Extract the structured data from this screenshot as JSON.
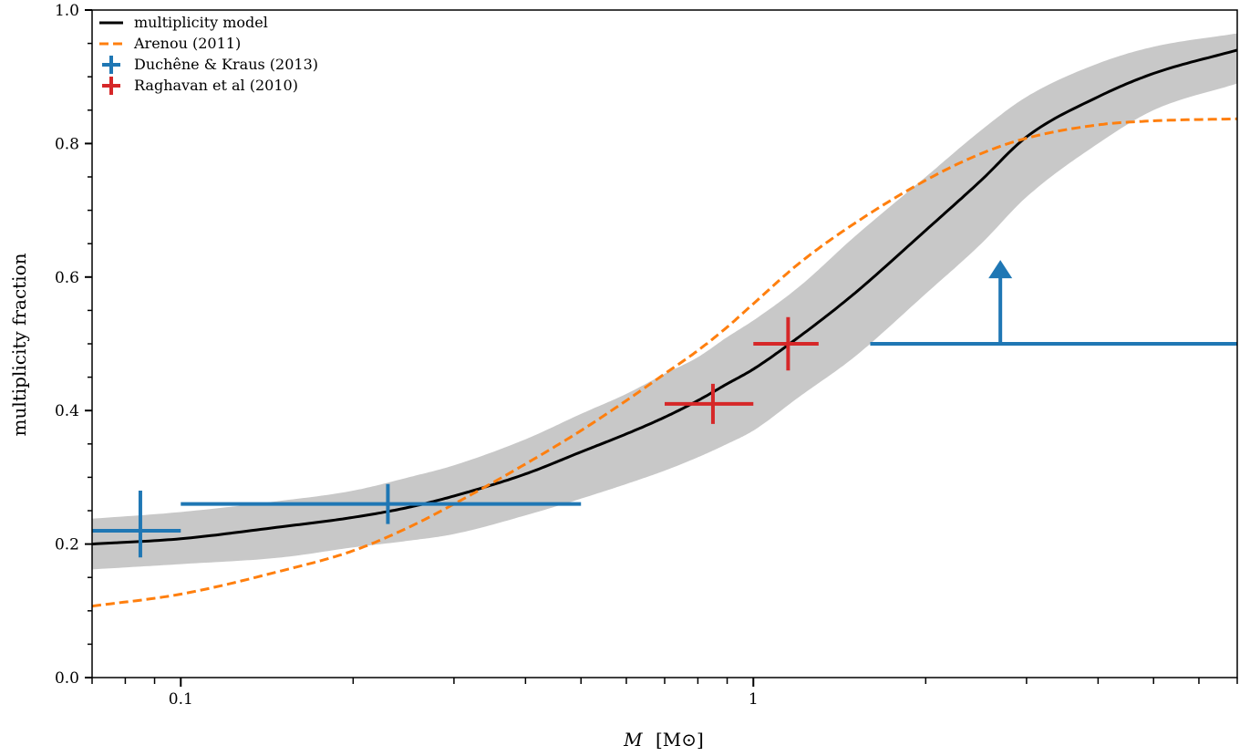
{
  "chart_data": {
    "type": "line",
    "xscale": "log",
    "xlim": [
      0.07,
      7.0
    ],
    "ylim": [
      0.0,
      1.0
    ],
    "xlabel_var": "M",
    "xlabel_unit": "[M⊙]",
    "ylabel": "multiplicity fraction",
    "xticks_major": [
      0.1,
      1
    ],
    "xtick_labels": [
      "0.1",
      "1"
    ],
    "yticks": [
      0.0,
      0.2,
      0.4,
      0.6,
      0.8,
      1.0
    ],
    "ytick_labels": [
      "0.0",
      "0.2",
      "0.4",
      "0.6",
      "0.8",
      "1.0"
    ],
    "grid": false,
    "legend_position": "top-left",
    "series": [
      {
        "name": "multiplicity model",
        "kind": "line",
        "color": "#000000",
        "x": [
          0.07,
          0.1,
          0.15,
          0.2,
          0.25,
          0.3,
          0.4,
          0.5,
          0.6,
          0.7,
          0.8,
          0.9,
          1.0,
          1.2,
          1.5,
          2.0,
          2.5,
          3.0,
          4.0,
          5.0,
          7.0
        ],
        "y": [
          0.2,
          0.208,
          0.226,
          0.24,
          0.255,
          0.272,
          0.305,
          0.338,
          0.365,
          0.39,
          0.415,
          0.44,
          0.462,
          0.51,
          0.575,
          0.67,
          0.745,
          0.81,
          0.87,
          0.905,
          0.94
        ],
        "band_lower": [
          0.162,
          0.17,
          0.18,
          0.195,
          0.205,
          0.215,
          0.243,
          0.268,
          0.29,
          0.31,
          0.33,
          0.35,
          0.37,
          0.42,
          0.48,
          0.575,
          0.65,
          0.72,
          0.8,
          0.85,
          0.89
        ],
        "band_upper": [
          0.238,
          0.248,
          0.265,
          0.28,
          0.3,
          0.318,
          0.357,
          0.395,
          0.425,
          0.455,
          0.48,
          0.51,
          0.535,
          0.585,
          0.66,
          0.75,
          0.82,
          0.87,
          0.92,
          0.945,
          0.965
        ]
      },
      {
        "name": "Arenou (2011)",
        "kind": "dashed",
        "color": "#ff7f0e",
        "x": [
          0.07,
          0.1,
          0.15,
          0.2,
          0.25,
          0.3,
          0.4,
          0.5,
          0.6,
          0.7,
          0.8,
          0.9,
          1.0,
          1.2,
          1.5,
          2.0,
          2.5,
          3.0,
          4.0,
          5.0,
          7.0
        ],
        "y": [
          0.107,
          0.125,
          0.16,
          0.19,
          0.225,
          0.26,
          0.32,
          0.37,
          0.415,
          0.455,
          0.49,
          0.525,
          0.56,
          0.62,
          0.68,
          0.745,
          0.785,
          0.808,
          0.828,
          0.834,
          0.837
        ]
      },
      {
        "name": "Duchêne & Kraus (2013)",
        "kind": "errorbar",
        "color": "#1f77b4",
        "points": [
          {
            "x": 0.085,
            "y": 0.22,
            "xerr": [
              0.07,
              0.1
            ],
            "yerr": [
              0.18,
              0.28
            ]
          },
          {
            "x": 0.23,
            "y": 0.26,
            "xerr": [
              0.1,
              0.5
            ],
            "yerr": [
              0.23,
              0.29
            ]
          }
        ],
        "lower_limit": {
          "x": 2.7,
          "y": 0.5,
          "xerr": [
            1.6,
            7.0
          ],
          "arrow_to": 0.62
        }
      },
      {
        "name": "Raghavan et al (2010)",
        "kind": "errorbar",
        "color": "#d62728",
        "points": [
          {
            "x": 0.85,
            "y": 0.41,
            "xerr": [
              0.7,
              1.0
            ],
            "yerr": [
              0.38,
              0.44
            ]
          },
          {
            "x": 1.15,
            "y": 0.5,
            "xerr": [
              1.0,
              1.3
            ],
            "yerr": [
              0.46,
              0.54
            ]
          }
        ]
      }
    ]
  }
}
